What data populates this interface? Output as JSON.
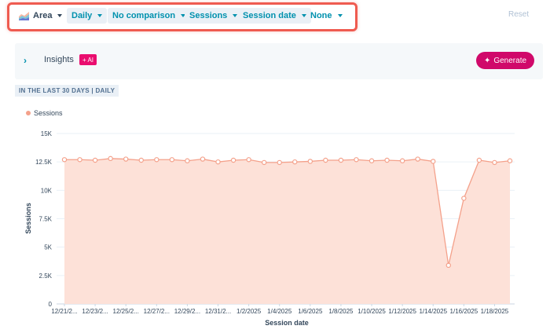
{
  "toolbar": {
    "chart_type": "Area",
    "frequency": "Daily",
    "comparison": "No comparison",
    "metric": "Sessions",
    "dimension": "Session date",
    "breakdown": "None",
    "reset_label": "Reset"
  },
  "insights": {
    "label": "Insights",
    "ai_badge": "+ AI",
    "generate_label": "Generate"
  },
  "range_label": "IN THE LAST 30 DAYS | DAILY",
  "colors": {
    "accent": "#0091ae",
    "highlight_border": "#ef5b50",
    "generate": "#d0096a",
    "series_line": "#f4a18b",
    "series_fill": "#fde1d8"
  },
  "chart_data": {
    "type": "area",
    "xlabel": "Session date",
    "ylabel": "Sessions",
    "ylim": [
      0,
      15000
    ],
    "y_ticks": [
      "0",
      "2.5K",
      "5K",
      "7.5K",
      "10K",
      "12.5K",
      "15K"
    ],
    "x_tick_labels": [
      "12/21/2...",
      "12/23/2...",
      "12/25/2...",
      "12/27/2...",
      "12/29/2...",
      "12/31/2...",
      "1/2/2025",
      "1/4/2025",
      "1/6/2025",
      "1/8/2025",
      "1/10/2025",
      "1/12/2025",
      "1/14/2025",
      "1/16/2025",
      "1/18/2025"
    ],
    "x": [
      "12/21/2024",
      "12/22/2024",
      "12/23/2024",
      "12/24/2024",
      "12/25/2024",
      "12/26/2024",
      "12/27/2024",
      "12/28/2024",
      "12/29/2024",
      "12/30/2024",
      "12/31/2024",
      "1/1/2025",
      "1/2/2025",
      "1/3/2025",
      "1/4/2025",
      "1/5/2025",
      "1/6/2025",
      "1/7/2025",
      "1/8/2025",
      "1/9/2025",
      "1/10/2025",
      "1/11/2025",
      "1/12/2025",
      "1/13/2025",
      "1/14/2025",
      "1/15/2025",
      "1/16/2025",
      "1/17/2025",
      "1/18/2025",
      "1/19/2025"
    ],
    "series": [
      {
        "name": "Sessions",
        "values": [
          12700,
          12700,
          12650,
          12800,
          12750,
          12650,
          12700,
          12700,
          12600,
          12750,
          12500,
          12650,
          12700,
          12450,
          12450,
          12500,
          12550,
          12650,
          12650,
          12700,
          12600,
          12650,
          12600,
          12750,
          12550,
          3400,
          9300,
          12650,
          12450,
          12600
        ]
      }
    ]
  }
}
